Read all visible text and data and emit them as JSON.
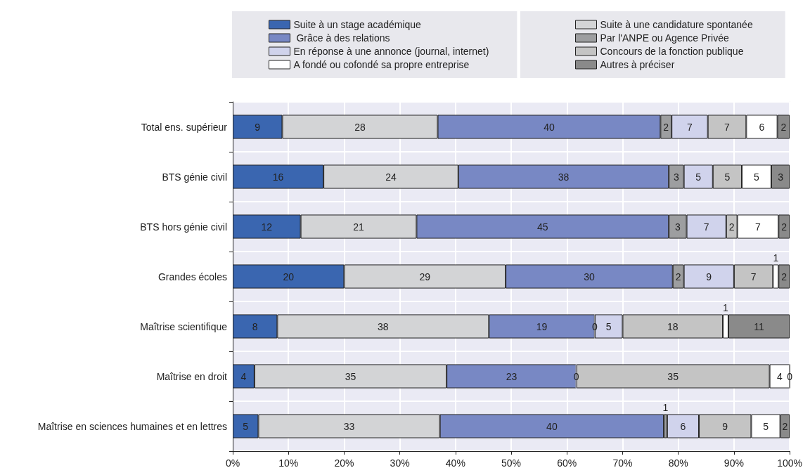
{
  "chart_data": {
    "type": "bar",
    "orientation": "horizontal",
    "stacked": true,
    "legend": "top",
    "grid": true,
    "categories": [
      "Total ens. supérieur",
      "BTS génie civil",
      "BTS hors génie civil",
      "Grandes écoles",
      "Maîtrise scientifique",
      "Maîtrise en droit",
      "Maîtrise en sciences humaines et en lettres"
    ],
    "xlim": [
      0,
      100
    ],
    "xticks": [
      {
        "value": 0,
        "label": "0%"
      },
      {
        "value": 10,
        "label": "10%"
      },
      {
        "value": 20,
        "label": "20%"
      },
      {
        "value": 30,
        "label": "30%"
      },
      {
        "value": 40,
        "label": "40%"
      },
      {
        "value": 50,
        "label": "50%"
      },
      {
        "value": 60,
        "label": "60%"
      },
      {
        "value": 70,
        "label": "70%"
      },
      {
        "value": 80,
        "label": "80%"
      },
      {
        "value": 90,
        "label": "90%"
      },
      {
        "value": 100,
        "label": "100%"
      }
    ],
    "series": [
      {
        "name": "Suite à un stage académique",
        "color": "#3a66b0",
        "values": [
          8.9,
          16.3,
          12.2,
          20,
          8,
          3.9,
          4.6
        ],
        "value_labels": [
          "9",
          "16",
          "12",
          "20",
          "8",
          "4",
          "5"
        ]
      },
      {
        "name": "Suite à une candidature spontanée",
        "color": "#d3d4d6",
        "values": [
          27.9,
          24.2,
          20.8,
          29,
          38,
          34.5,
          32.6
        ],
        "value_labels": [
          "28",
          "24",
          "21",
          "29",
          "38",
          "35",
          "33"
        ]
      },
      {
        "name": " Grâce à des relations",
        "color": "#7888c4",
        "values": [
          40.0,
          37.8,
          45.3,
          30,
          19,
          23.3,
          40.2
        ],
        "value_labels": [
          "40",
          "38",
          "45",
          "30",
          "19",
          "23",
          "40"
        ]
      },
      {
        "name": "Par l'ANPE ou Agence Privée",
        "color": "#9d9ea0",
        "values": [
          2.0,
          2.7,
          3.2,
          2,
          0,
          0,
          0.6
        ],
        "value_labels": [
          "2",
          "3",
          "3",
          "2",
          "0",
          "0",
          "1"
        ]
      },
      {
        "name": "En réponse à une annonce (journal, internet)",
        "color": "#d0d3ec",
        "values": [
          6.5,
          5.2,
          7.1,
          9,
          5,
          0,
          5.7
        ],
        "value_labels": [
          "7",
          "5",
          "7",
          "9",
          "5",
          null,
          "6"
        ]
      },
      {
        "name": "Concours de la fonction publique",
        "color": "#c4c4c4",
        "values": [
          6.9,
          5.2,
          2.0,
          7,
          18,
          34.7,
          9.4
        ],
        "value_labels": [
          "7",
          "5",
          "2",
          "7",
          "18",
          "35",
          "9"
        ]
      },
      {
        "name": "A fondé ou cofondé sa propre entreprise",
        "color": "#ffffff",
        "values": [
          5.6,
          5.3,
          7.4,
          1,
          1,
          3.6,
          5.2
        ],
        "value_labels": [
          "6",
          "5",
          "7",
          "1",
          "1",
          "4",
          "5"
        ]
      },
      {
        "name": "Autres à préciser",
        "color": "#8a8a8a",
        "values": [
          2.2,
          3.3,
          2.0,
          2,
          11,
          0,
          1.7
        ],
        "value_labels": [
          "2",
          "3",
          "2",
          "2",
          "11",
          "0",
          "2"
        ]
      }
    ]
  }
}
